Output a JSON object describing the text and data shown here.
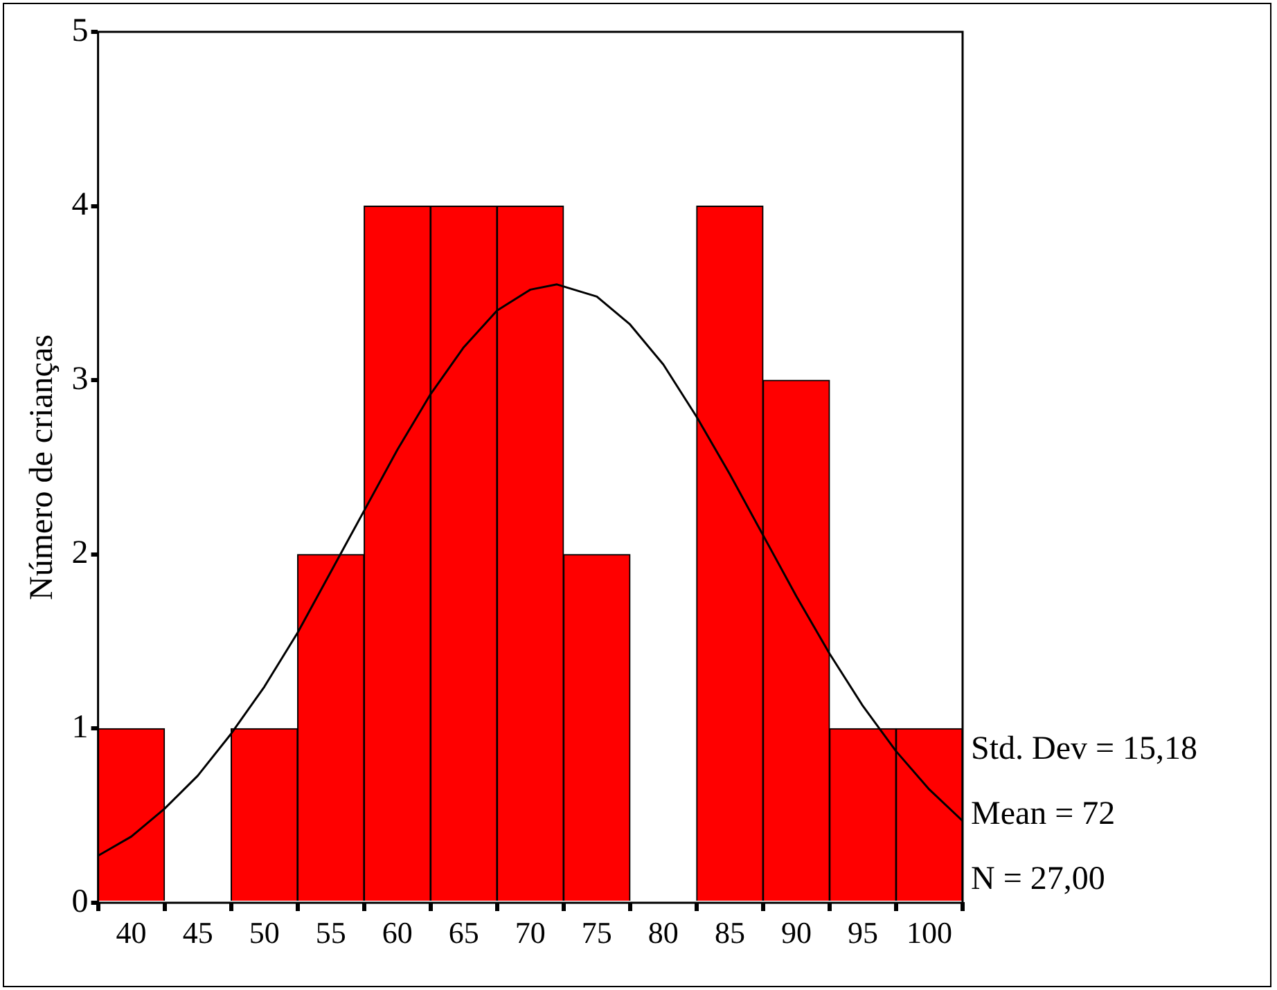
{
  "chart_data": {
    "type": "histogram",
    "ylabel": "Número de crianças",
    "bins": [
      37.5,
      42.5,
      47.5,
      52.5,
      57.5,
      62.5,
      67.5,
      72.5,
      77.5,
      82.5,
      87.5,
      92.5,
      97.5,
      102.5
    ],
    "series": [
      {
        "color": "#ff0000",
        "values": [
          1,
          0,
          1,
          2,
          4,
          4,
          4,
          2,
          0,
          4,
          3,
          1,
          1
        ]
      },
      {
        "type": "line",
        "color": "#000000",
        "x": [
          37.5,
          40,
          42.5,
          45,
          47.5,
          50,
          52.5,
          55,
          57.5,
          60,
          62.5,
          65,
          67.5,
          70,
          72,
          75,
          77.5,
          80,
          82.5,
          85,
          87.5,
          90,
          92.5,
          95,
          97.5,
          100,
          102.5
        ],
        "values": [
          0.27,
          0.38,
          0.54,
          0.73,
          0.97,
          1.24,
          1.55,
          1.9,
          2.25,
          2.6,
          2.92,
          3.19,
          3.4,
          3.52,
          3.55,
          3.48,
          3.32,
          3.09,
          2.79,
          2.46,
          2.11,
          1.76,
          1.43,
          1.13,
          0.87,
          0.65,
          0.47
        ]
      }
    ],
    "xlim": [
      37.5,
      102.5
    ],
    "xticks": [
      40,
      45,
      50,
      55,
      60,
      65,
      70,
      75,
      80,
      85,
      90,
      95,
      100
    ],
    "ylim": [
      0,
      5
    ],
    "yticks": [
      0,
      1,
      2,
      3,
      4,
      5
    ],
    "marker": "none",
    "grid": false,
    "legend": false,
    "annotations": [
      "Std. Dev = 15,18",
      "Mean = 72",
      "N = 27,00"
    ]
  }
}
